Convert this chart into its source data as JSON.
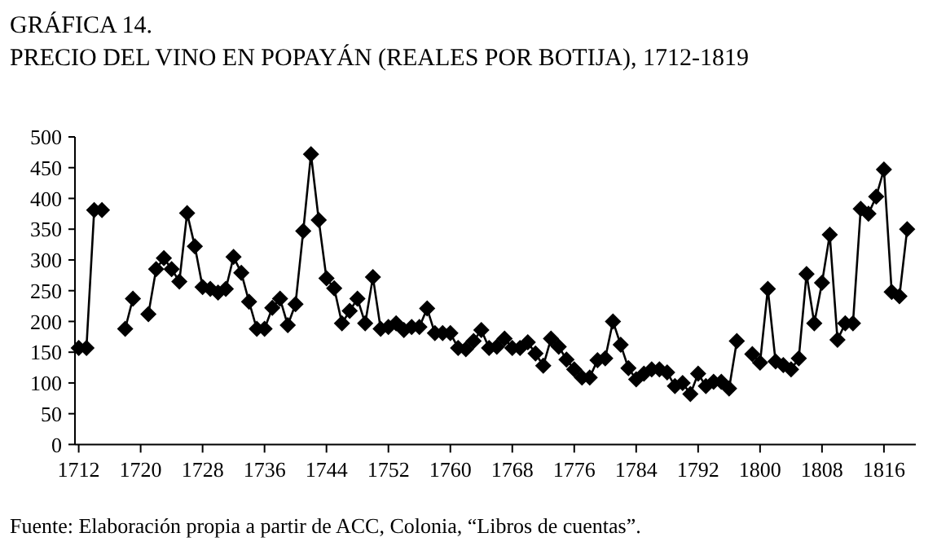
{
  "chart_data": {
    "type": "line",
    "title": "GRÁFICA 14.",
    "subtitle": "PRECIO DEL VINO EN POPAYÁN (REALES POR BOTIJA), 1712-1819",
    "categories": [
      "1712",
      null,
      null,
      null,
      null,
      null,
      null,
      null,
      "1720",
      null,
      null,
      null,
      null,
      null,
      null,
      null,
      "1728",
      null,
      null,
      null,
      null,
      null,
      null,
      null,
      "1736",
      null,
      null,
      null,
      null,
      null,
      null,
      null,
      "1744",
      null,
      null,
      null,
      null,
      null,
      null,
      null,
      "1752",
      null,
      null,
      null,
      null,
      null,
      null,
      null,
      "1760",
      null,
      null,
      null,
      null,
      null,
      null,
      null,
      "1768",
      null,
      null,
      null,
      null,
      null,
      null,
      null,
      "1776",
      null,
      null,
      null,
      null,
      null,
      null,
      null,
      "1784",
      null,
      null,
      null,
      null,
      null,
      null,
      null,
      "1792",
      null,
      null,
      null,
      null,
      null,
      null,
      null,
      "1800",
      null,
      null,
      null,
      null,
      null,
      null,
      null,
      "1808",
      null,
      null,
      null,
      null,
      null,
      null,
      null,
      "1816",
      null,
      null,
      null
    ],
    "series": [
      {
        "color": "#000000",
        "values": [
          157,
          157,
          381,
          381,
          null,
          null,
          188,
          237,
          null,
          212,
          285,
          303,
          285,
          265,
          376,
          322,
          256,
          253,
          247,
          253,
          305,
          279,
          232,
          188,
          188,
          222,
          237,
          194,
          228,
          347,
          472,
          365,
          270,
          254,
          197,
          217,
          237,
          197,
          272,
          188,
          191,
          197,
          186,
          191,
          191,
          221,
          181,
          181,
          181,
          157,
          155,
          168,
          186,
          157,
          159,
          172,
          157,
          157,
          166,
          148,
          128,
          172,
          159,
          138,
          122,
          109,
          109,
          137,
          140,
          200,
          162,
          124,
          106,
          115,
          122,
          122,
          117,
          95,
          100,
          82,
          115,
          95,
          102,
          102,
          91,
          168,
          null,
          147,
          133,
          253,
          135,
          129,
          122,
          140,
          277,
          197,
          263,
          341,
          170,
          197,
          197,
          383,
          375,
          403,
          447,
          248,
          241,
          350
        ]
      }
    ],
    "ylim": [
      0,
      500
    ],
    "yticks": [
      0,
      50,
      100,
      150,
      200,
      250,
      300,
      350,
      400,
      450,
      500
    ],
    "grid": false,
    "marker": "diamond",
    "line_style": "solid",
    "annotations": [
      "Fuente: Elaboración propia a partir de ACC, Colonia, “Libros de cuentas”."
    ]
  }
}
